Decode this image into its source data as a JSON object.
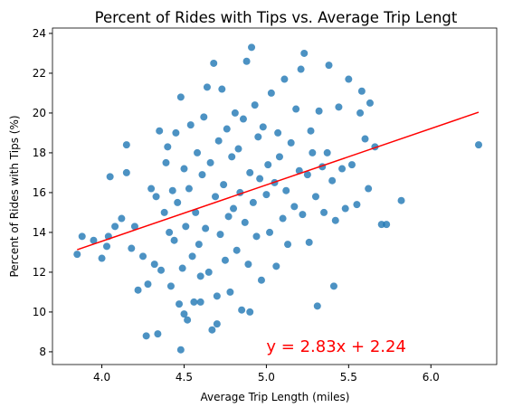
{
  "chart_data": {
    "type": "scatter",
    "title": "Percent of Rides with Tips vs. Average Trip Lengt",
    "xlabel": "Average Trip Length (miles)",
    "ylabel": "Percent of Rides with Tips (%)",
    "annotation": {
      "text": "y = 2.83x + 2.24",
      "x": 5.0,
      "y": 8,
      "color": "#ff0000"
    },
    "xlim": [
      3.7,
      6.4
    ],
    "ylim": [
      7.36,
      24.27
    ],
    "xticks": [
      {
        "value": 4,
        "label": "4.0"
      },
      {
        "value": 4.5,
        "label": "4.5"
      },
      {
        "value": 5,
        "label": "5.0"
      },
      {
        "value": 5.5,
        "label": "5.5"
      },
      {
        "value": 6,
        "label": "6.0"
      }
    ],
    "yticks": [
      8,
      10,
      12,
      14,
      16,
      18,
      20,
      22,
      24
    ],
    "series": [
      {
        "type": "scatter",
        "color": "#1f77b4",
        "x": [
          3.85,
          3.88,
          3.95,
          4.0,
          4.03,
          4.04,
          4.05,
          4.08,
          4.12,
          4.15,
          4.15,
          4.18,
          4.2,
          4.22,
          4.25,
          4.27,
          4.28,
          4.3,
          4.32,
          4.33,
          4.34,
          4.35,
          4.36,
          4.38,
          4.39,
          4.4,
          4.41,
          4.42,
          4.43,
          4.44,
          4.45,
          4.46,
          4.47,
          4.48,
          4.48,
          4.49,
          4.5,
          4.51,
          4.52,
          4.53,
          4.54,
          4.55,
          4.56,
          4.57,
          4.58,
          4.59,
          4.6,
          4.61,
          4.62,
          4.63,
          4.64,
          4.65,
          4.66,
          4.67,
          4.68,
          4.69,
          4.7,
          4.71,
          4.72,
          4.73,
          4.74,
          4.75,
          4.76,
          4.77,
          4.78,
          4.79,
          4.8,
          4.81,
          4.82,
          4.83,
          4.84,
          4.85,
          4.86,
          4.87,
          4.88,
          4.89,
          4.9,
          4.91,
          4.92,
          4.93,
          4.94,
          4.95,
          4.96,
          4.97,
          4.98,
          5.0,
          5.01,
          5.02,
          5.03,
          5.05,
          5.06,
          5.07,
          5.08,
          5.1,
          5.11,
          5.12,
          5.13,
          5.15,
          5.17,
          5.18,
          5.2,
          5.21,
          5.22,
          5.23,
          5.25,
          5.26,
          5.27,
          5.28,
          5.3,
          5.31,
          5.32,
          5.34,
          5.35,
          5.37,
          5.38,
          5.4,
          5.41,
          5.42,
          5.44,
          5.46,
          5.48,
          5.5,
          5.52,
          5.55,
          5.57,
          5.58,
          5.6,
          5.62,
          5.63,
          5.66,
          5.7,
          5.73,
          5.82,
          6.29,
          4.5,
          4.6,
          4.7,
          4.9
        ],
        "values": [
          12.9,
          13.8,
          13.6,
          12.7,
          13.3,
          13.8,
          16.8,
          14.3,
          14.7,
          18.4,
          17.0,
          13.2,
          14.3,
          11.1,
          12.8,
          8.8,
          11.4,
          16.2,
          12.4,
          15.8,
          8.9,
          19.1,
          12.1,
          15.0,
          17.5,
          18.3,
          14.0,
          11.3,
          16.1,
          13.6,
          19.0,
          15.5,
          10.4,
          20.8,
          8.1,
          12.2,
          17.2,
          14.3,
          9.6,
          16.2,
          19.4,
          12.8,
          10.5,
          15.0,
          18.0,
          13.4,
          11.8,
          16.9,
          19.8,
          14.2,
          21.3,
          12.0,
          17.5,
          9.1,
          22.5,
          15.8,
          10.8,
          18.6,
          13.9,
          21.2,
          16.4,
          12.6,
          19.2,
          14.8,
          11.0,
          17.8,
          15.2,
          20.0,
          13.1,
          18.2,
          16.0,
          10.1,
          19.7,
          14.5,
          22.6,
          12.4,
          17.0,
          23.3,
          15.5,
          20.4,
          13.8,
          18.8,
          16.7,
          11.6,
          19.3,
          15.9,
          17.4,
          14.0,
          21.0,
          16.5,
          12.3,
          19.0,
          17.8,
          14.7,
          21.7,
          16.1,
          13.4,
          18.5,
          15.3,
          20.2,
          17.1,
          22.2,
          14.9,
          23.0,
          16.9,
          13.5,
          19.1,
          18.0,
          15.8,
          10.3,
          20.1,
          17.3,
          15.0,
          18.0,
          22.4,
          16.6,
          11.3,
          14.6,
          20.3,
          17.2,
          15.2,
          21.7,
          17.4,
          15.4,
          20.0,
          21.1,
          18.7,
          16.2,
          20.5,
          18.3,
          14.4,
          14.4,
          15.6,
          18.4,
          9.9,
          10.5,
          9.4,
          10.0
        ]
      },
      {
        "type": "line",
        "color": "#ff0000",
        "x": [
          3.85,
          6.29
        ],
        "values": [
          13.13,
          20.04
        ]
      }
    ]
  }
}
